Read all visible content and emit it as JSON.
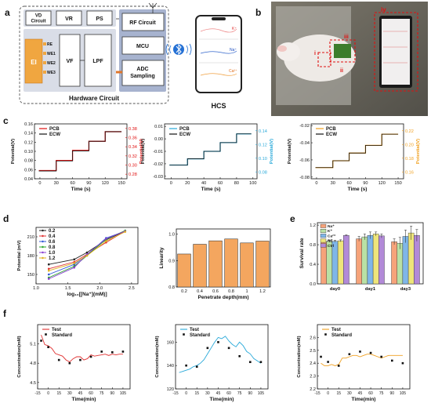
{
  "panels": {
    "a": {
      "letter": "a",
      "blocks": {
        "vd": "VD Circuit",
        "vr": "VR",
        "ps": "PS",
        "ei": "EI",
        "vf": "VF",
        "lpf": "LPF",
        "rf": "RF Circuit",
        "mcu": "MCU",
        "adc": "ADC Sampling",
        "electrodes": [
          "RE",
          "WE1",
          "WE2",
          "WE3"
        ]
      },
      "caption": "Hardware Circuit",
      "phone_caption": "HCS",
      "phone_ions": [
        "K⁺",
        "Na⁺",
        "Ca²⁺"
      ],
      "colors": {
        "ei": "#f0a640",
        "box": "#d9dde7",
        "rf": "#a7b3cf"
      }
    },
    "b": {
      "letter": "b",
      "labels": [
        "i",
        "ii",
        "iii",
        "iv"
      ]
    },
    "c": {
      "letter": "c",
      "xlabel": "Time (s)",
      "ylabel_left": "Potential(V)",
      "ylabel_right": "Potential(V)",
      "legend": [
        "PCB",
        "ECW"
      ]
    },
    "d": {
      "letter": "d"
    },
    "e": {
      "letter": "e"
    },
    "f": {
      "letter": "f",
      "xlabel": "Time(min)",
      "ylabel": "Concentration(mM)",
      "legend": [
        "Test",
        "Standard"
      ]
    }
  },
  "chart_data": [
    {
      "id": "c1",
      "type": "line",
      "xlabel": "Time (s)",
      "ylabel": "Potential(V)",
      "ylabel_right": "Potential(V)",
      "xlim": [
        -10,
        160
      ],
      "ylim": [
        0.04,
        0.16
      ],
      "ylim_right": [
        0.27,
        0.38
      ],
      "xticks": [
        0,
        30,
        60,
        90,
        120,
        150
      ],
      "yticks": [
        0.04,
        0.06,
        0.08,
        0.1,
        0.12,
        0.14,
        0.16
      ],
      "yticks_right": [
        "0.28",
        "0.30",
        "0.32",
        "0.34",
        "0.36",
        "0.38"
      ],
      "color_right": "#e01010",
      "series": [
        {
          "name": "PCB",
          "color": "#e01010",
          "steps": [
            [
              -2,
              0.058
            ],
            [
              30,
              0.08
            ],
            [
              60,
              0.102
            ],
            [
              90,
              0.122
            ],
            [
              120,
              0.143
            ],
            [
              150,
              0.143
            ]
          ]
        },
        {
          "name": "ECW",
          "color": "#111111",
          "steps": [
            [
              -2,
              0.057
            ],
            [
              30,
              0.079
            ],
            [
              60,
              0.101
            ],
            [
              90,
              0.122
            ],
            [
              120,
              0.143
            ],
            [
              150,
              0.143
            ]
          ]
        }
      ]
    },
    {
      "id": "c2",
      "type": "line",
      "xlabel": "Time (s)",
      "ylabel": "Potential(V)",
      "ylabel_right": "Potential(V)",
      "xlim": [
        -8,
        105
      ],
      "ylim": [
        -0.032,
        0.012
      ],
      "ylim_right": [
        0.07,
        0.15
      ],
      "xticks": [
        0,
        20,
        40,
        60,
        80,
        100
      ],
      "yticks": [
        -0.03,
        -0.02,
        -0.01,
        0.0,
        0.01
      ],
      "yticks_right": [
        "0.08",
        "0.10",
        "0.12",
        "0.14"
      ],
      "color_right": "#29a9d9",
      "series": [
        {
          "name": "PCB",
          "color": "#29a9d9",
          "steps": [
            [
              -2,
              -0.021
            ],
            [
              20,
              -0.016
            ],
            [
              40,
              -0.01
            ],
            [
              60,
              -0.003
            ],
            [
              80,
              0.004
            ],
            [
              98,
              0.004
            ]
          ]
        },
        {
          "name": "ECW",
          "color": "#111111",
          "steps": [
            [
              -2,
              -0.021
            ],
            [
              20,
              -0.016
            ],
            [
              40,
              -0.01
            ],
            [
              60,
              -0.003
            ],
            [
              80,
              0.004
            ],
            [
              98,
              0.004
            ]
          ]
        }
      ]
    },
    {
      "id": "c3",
      "type": "line",
      "xlabel": "Time (s)",
      "ylabel": "Potential(V)",
      "ylabel_right": "Potential(V)",
      "xlim": [
        -10,
        160
      ],
      "ylim": [
        -0.082,
        -0.018
      ],
      "ylim_right": [
        0.15,
        0.225
      ],
      "xticks": [
        0,
        30,
        60,
        90,
        120,
        150
      ],
      "yticks": [
        -0.08,
        -0.06,
        -0.04,
        -0.02
      ],
      "yticks_right": [
        "0.16",
        "0.18",
        "0.20",
        "0.22"
      ],
      "color_right": "#f0a020",
      "series": [
        {
          "name": "PCB",
          "color": "#f0a020",
          "steps": [
            [
              -2,
              -0.069
            ],
            [
              30,
              -0.061
            ],
            [
              60,
              -0.052
            ],
            [
              90,
              -0.043
            ],
            [
              120,
              -0.03
            ],
            [
              150,
              -0.03
            ]
          ]
        },
        {
          "name": "ECW",
          "color": "#111111",
          "steps": [
            [
              -2,
              -0.069
            ],
            [
              30,
              -0.061
            ],
            [
              60,
              -0.052
            ],
            [
              90,
              -0.043
            ],
            [
              120,
              -0.03
            ],
            [
              150,
              -0.03
            ]
          ]
        }
      ]
    },
    {
      "id": "d1",
      "type": "line",
      "xlabel": "log₁₀[[Na⁺](mM)]",
      "ylabel": "Potential (mV)",
      "xlim": [
        1.0,
        2.6
      ],
      "ylim": [
        135,
        225
      ],
      "xticks": [
        "1.0",
        "1.5",
        "2.0",
        "2.5"
      ],
      "yticks": [
        "150",
        "180",
        "210"
      ],
      "x": [
        1.2,
        1.6,
        1.8,
        2.1,
        2.4
      ],
      "series": [
        {
          "name": "0.2",
          "color": "#222222",
          "values": [
            166,
            174,
            185,
            205,
            219
          ]
        },
        {
          "name": "0.4",
          "color": "#e03030",
          "values": [
            159,
            170,
            182,
            201,
            219
          ]
        },
        {
          "name": "0.6",
          "color": "#2f56d6",
          "values": [
            150,
            166,
            181,
            208,
            219
          ]
        },
        {
          "name": "0.8",
          "color": "#2aa52a",
          "values": [
            145,
            163,
            180,
            206,
            220
          ]
        },
        {
          "name": "1.0",
          "color": "#8a3fd1",
          "values": [
            143,
            161,
            182,
            207,
            219
          ]
        },
        {
          "name": "1.2",
          "color": "#e0b020",
          "values": [
            156,
            168,
            180,
            203,
            218
          ]
        }
      ]
    },
    {
      "id": "d2",
      "type": "bar",
      "xlabel": "Penetrate depth(mm)",
      "ylabel": "Linearity",
      "ylim": [
        0.8,
        1.02
      ],
      "yticks": [
        "0.8",
        "0.9",
        "1.0"
      ],
      "categories": [
        "0.2",
        "0.4",
        "0.6",
        "0.8",
        "1",
        "1.2"
      ],
      "values": [
        0.925,
        0.962,
        0.975,
        0.982,
        0.967,
        0.974
      ],
      "color": "#f4a65f"
    },
    {
      "id": "e",
      "type": "bar",
      "ylabel": "Survival rate",
      "ylim": [
        0,
        1.25
      ],
      "yticks": [
        "0.0",
        "0.4",
        "0.8",
        "1.2"
      ],
      "categories": [
        "day0",
        "day1",
        "day3"
      ],
      "series": [
        {
          "name": "Na⁺",
          "color": "#f6a37a",
          "values": [
            0.86,
            0.92,
            0.86
          ],
          "err": [
            0.02,
            0.05,
            0.06
          ]
        },
        {
          "name": "K⁺",
          "color": "#b9e1a5",
          "values": [
            0.87,
            0.96,
            0.83
          ],
          "err": [
            0.02,
            0.06,
            0.12
          ]
        },
        {
          "name": "Ca²⁺",
          "color": "#7fb6e8",
          "values": [
            0.87,
            0.99,
            0.97
          ],
          "err": [
            0.02,
            0.07,
            0.13
          ]
        },
        {
          "name": "RE",
          "color": "#eee57a",
          "values": [
            0.88,
            1.02,
            1.04
          ],
          "err": [
            0.02,
            0.04,
            0.14
          ]
        },
        {
          "name": "Ctrl",
          "color": "#b28ad8",
          "values": [
            0.99,
            0.98,
            0.99
          ],
          "err": [
            0.01,
            0.04,
            0.12
          ]
        }
      ]
    },
    {
      "id": "f1",
      "type": "line",
      "xlabel": "Time(min)",
      "ylabel": "Concentration(mM)",
      "xlim": [
        -15,
        115
      ],
      "ylim": [
        4.4,
        5.4
      ],
      "xticks": [
        "-15",
        "0",
        "15",
        "30",
        "45",
        "60",
        "75",
        "90",
        "105"
      ],
      "yticks": [
        "4.5",
        "4.8",
        "5.1"
      ],
      "test_color": "#e03030",
      "test": [
        [
          -10,
          5.24
        ],
        [
          -5,
          5.09
        ],
        [
          0,
          5.07
        ],
        [
          5,
          5.03
        ],
        [
          10,
          4.95
        ],
        [
          15,
          4.93
        ],
        [
          20,
          4.91
        ],
        [
          25,
          4.85
        ],
        [
          30,
          4.82
        ],
        [
          35,
          4.87
        ],
        [
          40,
          4.9
        ],
        [
          45,
          4.9
        ],
        [
          50,
          4.85
        ],
        [
          55,
          4.87
        ],
        [
          60,
          4.93
        ],
        [
          65,
          4.91
        ],
        [
          70,
          4.92
        ],
        [
          75,
          4.93
        ],
        [
          80,
          4.94
        ],
        [
          85,
          4.92
        ],
        [
          90,
          4.94
        ],
        [
          95,
          4.93
        ],
        [
          100,
          4.94
        ],
        [
          105,
          4.94
        ]
      ],
      "standard": [
        [
          -10,
          5.15
        ],
        [
          0,
          5.05
        ],
        [
          15,
          4.85
        ],
        [
          30,
          4.8
        ],
        [
          45,
          4.85
        ],
        [
          60,
          4.9
        ],
        [
          75,
          4.98
        ],
        [
          90,
          4.97
        ],
        [
          105,
          4.98
        ]
      ]
    },
    {
      "id": "f2",
      "type": "line",
      "xlabel": "Time(min)",
      "ylabel": "Concentration(mM)",
      "xlim": [
        -15,
        115
      ],
      "ylim": [
        120,
        175
      ],
      "xticks": [
        "-15",
        "0",
        "15",
        "30",
        "45",
        "60",
        "75",
        "90",
        "105"
      ],
      "yticks": [
        "120",
        "140",
        "160"
      ],
      "test_color": "#29a9d9",
      "test": [
        [
          -10,
          134
        ],
        [
          -5,
          135
        ],
        [
          0,
          136
        ],
        [
          5,
          137
        ],
        [
          10,
          139
        ],
        [
          15,
          140
        ],
        [
          20,
          142
        ],
        [
          25,
          145
        ],
        [
          30,
          150
        ],
        [
          35,
          155
        ],
        [
          40,
          160
        ],
        [
          45,
          164
        ],
        [
          50,
          163
        ],
        [
          55,
          165
        ],
        [
          60,
          161
        ],
        [
          65,
          158
        ],
        [
          70,
          156
        ],
        [
          75,
          160
        ],
        [
          80,
          157
        ],
        [
          85,
          152
        ],
        [
          90,
          150
        ],
        [
          95,
          146
        ],
        [
          100,
          144
        ],
        [
          105,
          142
        ]
      ],
      "standard": [
        [
          0,
          140
        ],
        [
          15,
          139
        ],
        [
          30,
          155
        ],
        [
          45,
          160
        ],
        [
          60,
          155
        ],
        [
          75,
          148
        ],
        [
          90,
          143
        ],
        [
          105,
          143
        ]
      ]
    },
    {
      "id": "f3",
      "type": "line",
      "xlabel": "Time(min)",
      "ylabel": "Concentration(mM)",
      "xlim": [
        -15,
        115
      ],
      "ylim": [
        2.2,
        2.7
      ],
      "xticks": [
        "-15",
        "0",
        "15",
        "30",
        "45",
        "60",
        "75",
        "90",
        "105"
      ],
      "yticks": [
        "2.2",
        "2.3",
        "2.4",
        "2.5",
        "2.6"
      ],
      "test_color": "#f0a020",
      "test": [
        [
          -10,
          2.4
        ],
        [
          -5,
          2.38
        ],
        [
          0,
          2.38
        ],
        [
          5,
          2.39
        ],
        [
          10,
          2.38
        ],
        [
          15,
          2.39
        ],
        [
          20,
          2.44
        ],
        [
          25,
          2.44
        ],
        [
          30,
          2.45
        ],
        [
          35,
          2.46
        ],
        [
          40,
          2.46
        ],
        [
          45,
          2.45
        ],
        [
          50,
          2.46
        ],
        [
          55,
          2.47
        ],
        [
          60,
          2.47
        ],
        [
          65,
          2.46
        ],
        [
          70,
          2.45
        ],
        [
          75,
          2.44
        ],
        [
          80,
          2.45
        ],
        [
          85,
          2.46
        ],
        [
          90,
          2.46
        ],
        [
          95,
          2.46
        ],
        [
          100,
          2.46
        ],
        [
          105,
          2.46
        ]
      ],
      "standard": [
        [
          -10,
          2.45
        ],
        [
          0,
          2.41
        ],
        [
          15,
          2.38
        ],
        [
          30,
          2.47
        ],
        [
          45,
          2.49
        ],
        [
          60,
          2.48
        ],
        [
          75,
          2.45
        ],
        [
          90,
          2.42
        ],
        [
          105,
          2.4
        ]
      ]
    }
  ]
}
